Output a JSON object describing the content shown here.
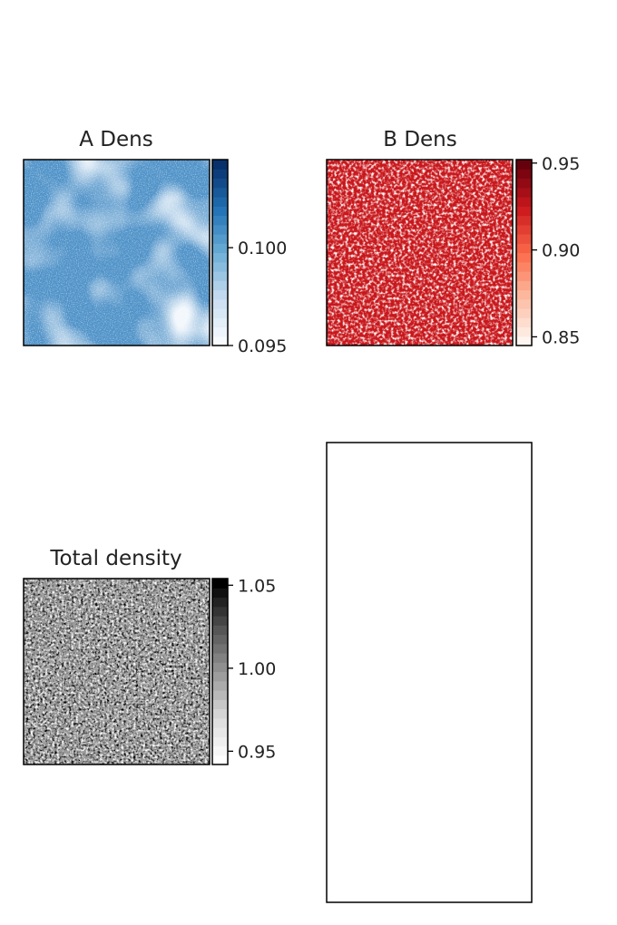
{
  "chart_data": [
    {
      "type": "heatmap",
      "title": "A Dens",
      "colormap": "Blues",
      "colorbar_ticks": [
        "0.095",
        "0.100"
      ],
      "colorbar_range": [
        0.095,
        0.1045
      ],
      "colorbar_levels": 20
    },
    {
      "type": "heatmap",
      "title": "B Dens",
      "colormap": "Reds",
      "colorbar_ticks": [
        "0.85",
        "0.90",
        "0.95"
      ],
      "colorbar_range": [
        0.845,
        0.952
      ],
      "colorbar_levels": 20
    },
    {
      "type": "heatmap",
      "title": "Total density",
      "colormap": "Greys",
      "colorbar_ticks": [
        "0.95",
        "1.00",
        "1.05"
      ],
      "colorbar_range": [
        0.942,
        1.054
      ],
      "colorbar_levels": 20
    },
    {
      "type": "table",
      "title": ""
    }
  ]
}
